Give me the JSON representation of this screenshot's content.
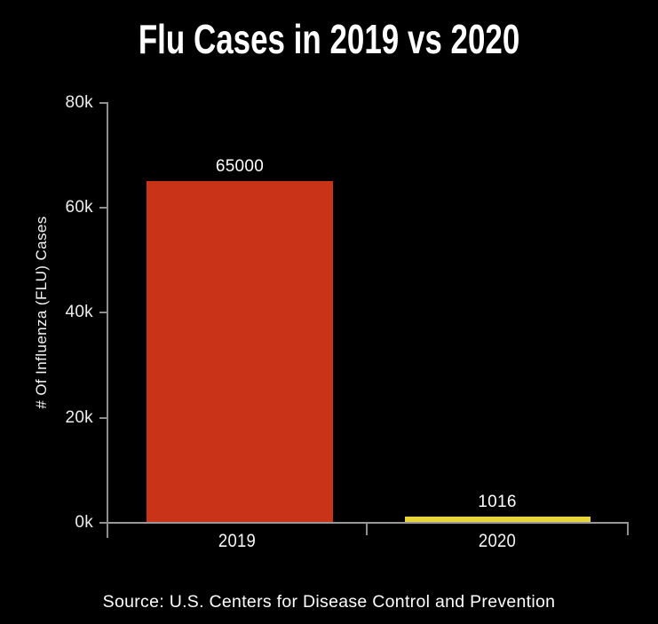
{
  "title": "Flu Cases in 2019 vs 2020",
  "source": "Source: U.S. Centers for Disease Control and Prevention",
  "colors": {
    "background": "#000000",
    "bar_2019": "#c93418",
    "bar_2020": "#e8d53b",
    "axis": "#8f8f8f",
    "text": "#ffffff"
  },
  "chart_data": {
    "type": "bar",
    "title": "Flu Cases in 2019 vs 2020",
    "categories": [
      "2019",
      "2020"
    ],
    "values": [
      65000,
      1016
    ],
    "value_labels": [
      "65000",
      "1016"
    ],
    "bar_colors": [
      "#c93418",
      "#e8d53b"
    ],
    "xlabel": "",
    "ylabel": "# Of Influenza (FLU) Cases",
    "ylim": [
      0,
      80000
    ],
    "yticks": [
      {
        "value": 0,
        "label": "0k"
      },
      {
        "value": 20000,
        "label": "20k"
      },
      {
        "value": 40000,
        "label": "40k"
      },
      {
        "value": 60000,
        "label": "60k"
      },
      {
        "value": 80000,
        "label": "80k"
      }
    ],
    "grid": false,
    "legend": false,
    "source": "Source: U.S. Centers for Disease Control and Prevention"
  }
}
